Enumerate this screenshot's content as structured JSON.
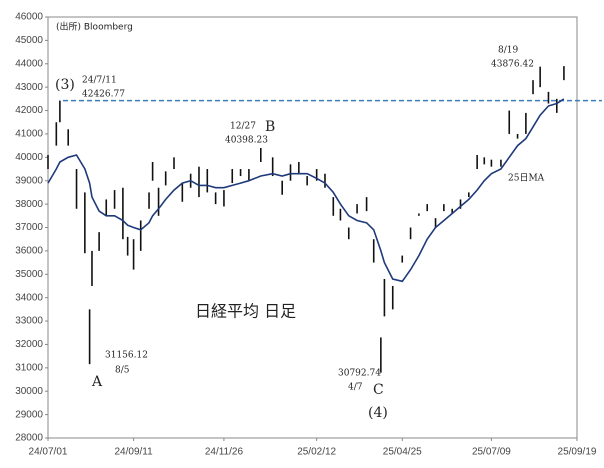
{
  "chart_data": {
    "type": "range-bar",
    "source": "(出所) Bloomberg",
    "title": "日経平均 日足",
    "xticks": [
      "24/07/01",
      "24/09/11",
      "24/11/26",
      "25/02/12",
      "25/04/25",
      "25/07/09",
      "25/09/19"
    ],
    "ylim": [
      28000,
      46000
    ],
    "yticks": [
      28000,
      29000,
      30000,
      31000,
      32000,
      33000,
      34000,
      35000,
      36000,
      37000,
      38000,
      39000,
      40000,
      41000,
      42000,
      43000,
      44000,
      45000,
      46000
    ],
    "x": [
      "24/07/01",
      "24/07/08",
      "24/07/11",
      "24/07/18",
      "24/07/25",
      "24/08/01",
      "24/08/05",
      "24/08/07",
      "24/08/13",
      "24/08/19",
      "24/08/26",
      "24/09/02",
      "24/09/06",
      "24/09/11",
      "24/09/17",
      "24/09/24",
      "24/09/27",
      "24/10/02",
      "24/10/08",
      "24/10/15",
      "24/10/22",
      "24/10/29",
      "24/11/05",
      "24/11/12",
      "24/11/19",
      "24/11/26",
      "24/12/03",
      "24/12/10",
      "24/12/17",
      "24/12/27",
      "25/01/06",
      "25/01/14",
      "25/01/21",
      "25/01/28",
      "25/02/04",
      "25/02/12",
      "25/02/19",
      "25/02/26",
      "25/03/04",
      "25/03/11",
      "25/03/18",
      "25/03/26",
      "25/04/01",
      "25/04/07",
      "25/04/10",
      "25/04/17",
      "25/04/25",
      "25/05/02",
      "25/05/09",
      "25/05/16",
      "25/05/23",
      "25/05/30",
      "25/06/06",
      "25/06/13",
      "25/06/20",
      "25/06/27",
      "25/07/03",
      "25/07/09",
      "25/07/17",
      "25/07/24",
      "25/07/31",
      "25/08/07",
      "25/08/13",
      "25/08/19",
      "25/08/26",
      "25/09/02",
      "25/09/08"
    ],
    "bar_color": "#111111",
    "low": [
      39500,
      40500,
      41500,
      40500,
      37800,
      35900,
      31156.12,
      34500,
      36000,
      37500,
      37800,
      36500,
      35800,
      35200,
      36000,
      37800,
      39000,
      37500,
      38800,
      39500,
      38100,
      38700,
      38300,
      38500,
      38000,
      37900,
      38900,
      39200,
      39000,
      39800,
      39200,
      38400,
      39000,
      39300,
      38800,
      39000,
      38700,
      37500,
      37300,
      36500,
      37600,
      37700,
      35500,
      30792.74,
      33200,
      33500,
      35500,
      36500,
      37500,
      37700,
      37000,
      37700,
      37600,
      37800,
      38300,
      39500,
      39700,
      39600,
      39600,
      41000,
      40800,
      41000,
      42700,
      43000,
      42300,
      41900,
      43300
    ],
    "high": [
      40100,
      41500,
      42426.77,
      41200,
      39500,
      38500,
      33500,
      36000,
      36800,
      38200,
      38600,
      38700,
      36600,
      36500,
      37300,
      38500,
      39800,
      38700,
      39400,
      40000,
      38900,
      39300,
      39600,
      39500,
      38500,
      38600,
      39500,
      39500,
      39500,
      40398.23,
      40000,
      39000,
      39700,
      39800,
      39200,
      39500,
      39300,
      38300,
      37800,
      37000,
      38000,
      38300,
      36500,
      32300,
      34800,
      34500,
      35800,
      37000,
      37600,
      38000,
      37400,
      38000,
      37800,
      38200,
      38500,
      40100,
      40000,
      39900,
      39900,
      42000,
      41000,
      41900,
      43300,
      43876.42,
      42800,
      42500,
      43900
    ],
    "series": [
      {
        "name": "25日MA",
        "color": "#1f3a7a",
        "values": [
          38900,
          39500,
          39800,
          40000,
          40100,
          39500,
          38900,
          38300,
          37700,
          37500,
          37500,
          37300,
          37100,
          37000,
          36900,
          37200,
          37500,
          37800,
          38200,
          38600,
          38900,
          39000,
          38800,
          38800,
          38700,
          38700,
          38800,
          38900,
          39000,
          39200,
          39300,
          39200,
          39300,
          39300,
          39300,
          39100,
          38900,
          38500,
          38000,
          37500,
          37300,
          37200,
          36900,
          36000,
          35500,
          34800,
          34700,
          35200,
          35800,
          36500,
          37000,
          37300,
          37600,
          37900,
          38200,
          38600,
          39000,
          39300,
          39500,
          40000,
          40500,
          40800,
          41300,
          41800,
          42200,
          42300,
          42500
        ]
      }
    ],
    "hline": 42426.77,
    "hline_color": "#3a7fc1",
    "annotations": [
      "(3)",
      "24/7/11",
      "42426.77",
      "A",
      "31156.12",
      "8/5",
      "12/27",
      "40398.23",
      "B",
      "30792.74",
      "4/7",
      "C",
      "(4)",
      "8/19",
      "43876.42",
      "25日MA"
    ]
  }
}
